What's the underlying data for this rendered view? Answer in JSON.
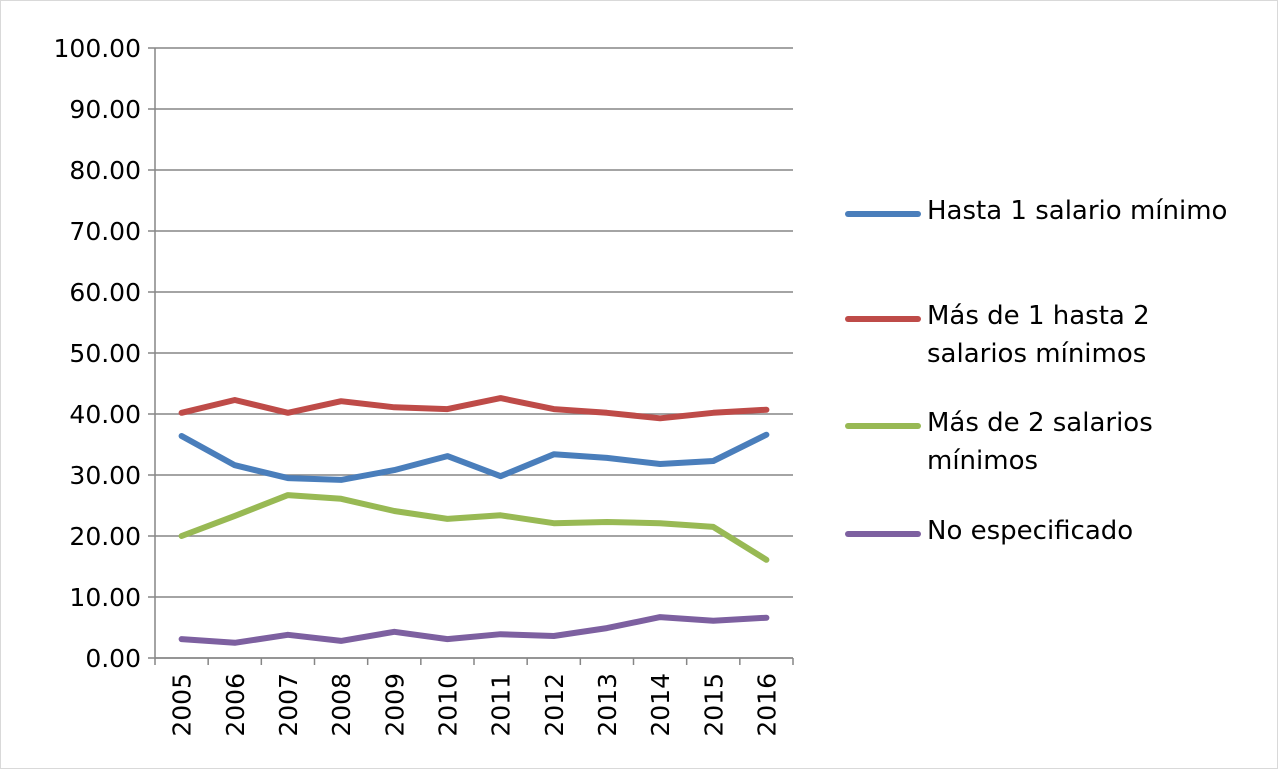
{
  "chart_data": {
    "type": "line",
    "categories": [
      "2005",
      "2006",
      "2007",
      "2008",
      "2009",
      "2010",
      "2011",
      "2012",
      "2013",
      "2014",
      "2015",
      "2016"
    ],
    "series": [
      {
        "name": "Hasta 1 salario mínimo",
        "color": "#4a7ebb",
        "values": [
          36.4,
          31.6,
          29.5,
          29.2,
          30.8,
          33.1,
          29.8,
          33.4,
          32.8,
          31.8,
          32.3,
          36.6
        ]
      },
      {
        "name": "Más de 1 hasta 2 salarios mínimos",
        "color": "#be4b48",
        "values": [
          40.2,
          42.3,
          40.2,
          42.1,
          41.1,
          40.8,
          42.6,
          40.8,
          40.2,
          39.3,
          40.2,
          40.7
        ]
      },
      {
        "name": "Más de 2 salarios mínimos",
        "color": "#98b954",
        "values": [
          20.0,
          23.3,
          26.7,
          26.1,
          24.1,
          22.8,
          23.4,
          22.1,
          22.3,
          22.1,
          21.5,
          16.1
        ]
      },
      {
        "name": "No especificado",
        "color": "#7d60a0",
        "values": [
          3.1,
          2.5,
          3.8,
          2.8,
          4.3,
          3.1,
          3.9,
          3.6,
          4.9,
          6.7,
          6.1,
          6.6
        ]
      }
    ],
    "ylim": [
      0,
      100
    ],
    "yticks": [
      {
        "value": 0,
        "label": "0.00"
      },
      {
        "value": 10,
        "label": "10.00"
      },
      {
        "value": 20,
        "label": "20.00"
      },
      {
        "value": 30,
        "label": "30.00"
      },
      {
        "value": 40,
        "label": "40.00"
      },
      {
        "value": 50,
        "label": "50.00"
      },
      {
        "value": 60,
        "label": "60.00"
      },
      {
        "value": 70,
        "label": "70.00"
      },
      {
        "value": 80,
        "label": "80.00"
      },
      {
        "value": 90,
        "label": "90.00"
      },
      {
        "value": 100,
        "label": "100.00"
      }
    ],
    "grid": true,
    "legend": "right"
  }
}
